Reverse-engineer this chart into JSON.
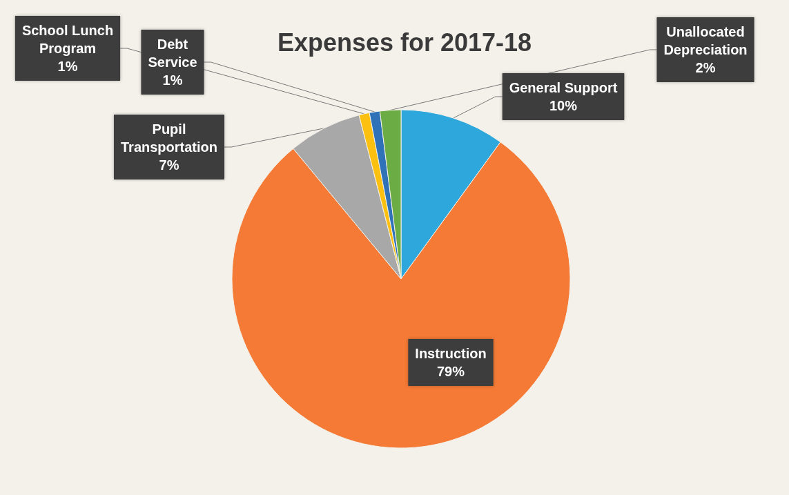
{
  "chart_data": {
    "type": "pie",
    "title": "Expenses for 2017-18",
    "categories": [
      "General Support",
      "Instruction",
      "Pupil Transportation",
      "School Lunch Program",
      "Debt Service",
      "Unallocated Depreciation"
    ],
    "values": [
      10,
      79,
      7,
      1,
      1,
      2
    ],
    "value_labels": [
      "10%",
      "79%",
      "7%",
      "1%",
      "1%",
      "2%"
    ],
    "colors": [
      "#2ea8dc",
      "#f47a35",
      "#a8a8a8",
      "#fcc010",
      "#2f72b8",
      "#6cac45"
    ],
    "legend": false
  }
}
